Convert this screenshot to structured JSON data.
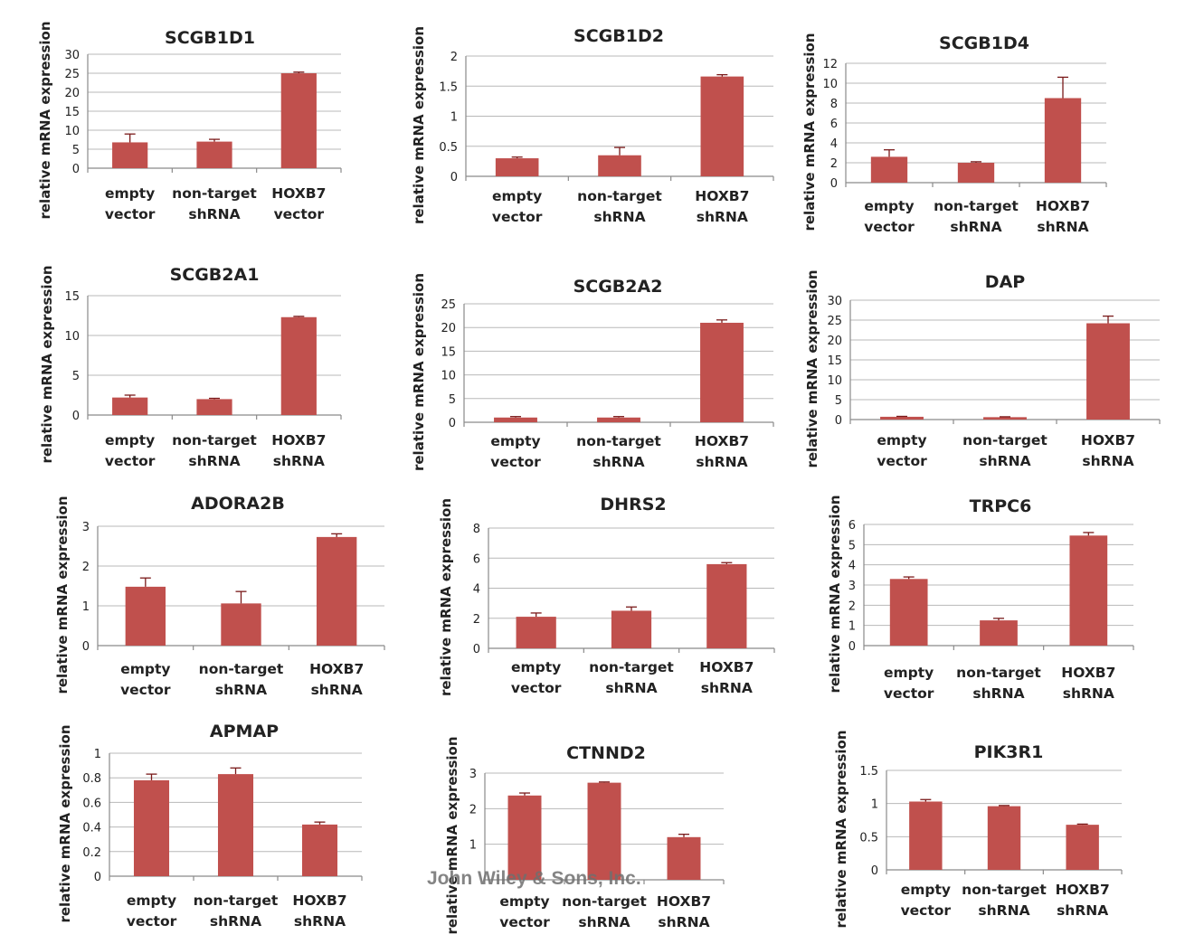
{
  "figure": {
    "watermark": "John Wiley & Sons, Inc.",
    "bar_color": "#c0504d",
    "error_color": "#7a1a1a"
  },
  "chart_data": [
    {
      "type": "bar",
      "title": "SCGB1D1",
      "ylabel": "relative mRNA expression",
      "ylim": [
        0,
        30
      ],
      "yticks": [
        "0",
        "5",
        "10",
        "15",
        "20",
        "25",
        "30"
      ],
      "categories": [
        [
          "empty",
          "vector"
        ],
        [
          "non-target",
          "shRNA"
        ],
        [
          "HOXB7",
          "vector"
        ]
      ],
      "values": [
        6.8,
        7.0,
        25.0
      ],
      "errors": [
        2.2,
        0.6,
        0.3
      ]
    },
    {
      "type": "bar",
      "title": "SCGB1D2",
      "ylabel": "relative mRNA expression",
      "ylim": [
        0,
        2
      ],
      "yticks": [
        "0",
        "0.5",
        "1",
        "1.5",
        "2"
      ],
      "categories": [
        [
          "empty",
          "vector"
        ],
        [
          "non-target",
          "shRNA"
        ],
        [
          "HOXB7",
          "shRNA"
        ]
      ],
      "values": [
        0.3,
        0.35,
        1.66
      ],
      "errors": [
        0.02,
        0.13,
        0.03
      ]
    },
    {
      "type": "bar",
      "title": "SCGB1D4",
      "ylabel": "relative mRNA expression",
      "ylim": [
        0,
        12
      ],
      "yticks": [
        "0",
        "2",
        "4",
        "6",
        "8",
        "10",
        "12"
      ],
      "categories": [
        [
          "empty",
          "vector"
        ],
        [
          "non-target",
          "shRNA"
        ],
        [
          "HOXB7",
          "shRNA"
        ]
      ],
      "values": [
        2.6,
        2.0,
        8.5
      ],
      "errors": [
        0.7,
        0.1,
        2.1
      ]
    },
    {
      "type": "bar",
      "title": "SCGB2A1",
      "ylabel": "relative mRNA expression",
      "ylim": [
        0,
        15
      ],
      "yticks": [
        "0",
        "5",
        "10",
        "15"
      ],
      "categories": [
        [
          "empty",
          "vector"
        ],
        [
          "non-target",
          "shRNA"
        ],
        [
          "HOXB7",
          "shRNA"
        ]
      ],
      "values": [
        2.2,
        2.0,
        12.3
      ],
      "errors": [
        0.3,
        0.1,
        0.1
      ]
    },
    {
      "type": "bar",
      "title": "SCGB2A2",
      "ylabel": "relative mRNA expression",
      "ylim": [
        0,
        25
      ],
      "yticks": [
        "0",
        "5",
        "10",
        "15",
        "20",
        "25"
      ],
      "categories": [
        [
          "empty",
          "vector"
        ],
        [
          "non-target",
          "shRNA"
        ],
        [
          "HOXB7",
          "shRNA"
        ]
      ],
      "values": [
        1.0,
        1.0,
        21.0
      ],
      "errors": [
        0.2,
        0.2,
        0.6
      ]
    },
    {
      "type": "bar",
      "title": "DAP",
      "ylabel": "relative mRNA expression",
      "ylim": [
        0,
        30
      ],
      "yticks": [
        "0",
        "5",
        "10",
        "15",
        "20",
        "25",
        "30"
      ],
      "categories": [
        [
          "empty",
          "vector"
        ],
        [
          "non-target",
          "shRNA"
        ],
        [
          "HOXB7",
          "shRNA"
        ]
      ],
      "values": [
        0.7,
        0.6,
        24.2
      ],
      "errors": [
        0.1,
        0.1,
        1.8
      ]
    },
    {
      "type": "bar",
      "title": "ADORA2B",
      "ylabel": "relative mRNA expression",
      "ylim": [
        0,
        3
      ],
      "yticks": [
        "0",
        "1",
        "2",
        "3"
      ],
      "categories": [
        [
          "empty",
          "vector"
        ],
        [
          "non-target",
          "shRNA"
        ],
        [
          "HOXB7",
          "shRNA"
        ]
      ],
      "values": [
        1.48,
        1.06,
        2.73
      ],
      "errors": [
        0.22,
        0.3,
        0.08
      ]
    },
    {
      "type": "bar",
      "title": "DHRS2",
      "ylabel": "relative mRNA expression",
      "ylim": [
        0,
        8
      ],
      "yticks": [
        "0",
        "2",
        "4",
        "6",
        "8"
      ],
      "categories": [
        [
          "empty",
          "vector"
        ],
        [
          "non-target",
          "shRNA"
        ],
        [
          "HOXB7",
          "shRNA"
        ]
      ],
      "values": [
        2.1,
        2.5,
        5.6
      ],
      "errors": [
        0.25,
        0.25,
        0.1
      ]
    },
    {
      "type": "bar",
      "title": "TRPC6",
      "ylabel": "relative mRNA expression",
      "ylim": [
        0,
        6
      ],
      "yticks": [
        "0",
        "1",
        "2",
        "3",
        "4",
        "5",
        "6"
      ],
      "categories": [
        [
          "empty",
          "vector"
        ],
        [
          "non-target",
          "shRNA"
        ],
        [
          "HOXB7",
          "shRNA"
        ]
      ],
      "values": [
        3.3,
        1.25,
        5.45
      ],
      "errors": [
        0.1,
        0.1,
        0.15
      ]
    },
    {
      "type": "bar",
      "title": "APMAP",
      "ylabel": "relative mRNA expression",
      "ylim": [
        0,
        1
      ],
      "yticks": [
        "0",
        "0.2",
        "0.4",
        "0.6",
        "0.8",
        "1"
      ],
      "categories": [
        [
          "empty",
          "vector"
        ],
        [
          "non-target",
          "shRNA"
        ],
        [
          "HOXB7",
          "shRNA"
        ]
      ],
      "values": [
        0.78,
        0.83,
        0.42
      ],
      "errors": [
        0.05,
        0.05,
        0.02
      ]
    },
    {
      "type": "bar",
      "title": "CTNND2",
      "ylabel": "relative mRNA expression",
      "ylim": [
        0,
        3
      ],
      "yticks": [
        "1",
        "2",
        "3"
      ],
      "categories": [
        [
          "empty",
          "vector"
        ],
        [
          "non-target",
          "shRNA"
        ],
        [
          "HOXB7",
          "shRNA"
        ]
      ],
      "values": [
        2.37,
        2.73,
        1.2
      ],
      "errors": [
        0.07,
        0.02,
        0.08
      ]
    },
    {
      "type": "bar",
      "title": "PIK3R1",
      "ylabel": "relative mRNA expression",
      "ylim": [
        0,
        1.5
      ],
      "yticks": [
        "0",
        "0.5",
        "1",
        "1.5"
      ],
      "categories": [
        [
          "empty",
          "vector"
        ],
        [
          "non-target",
          "shRNA"
        ],
        [
          "HOXB7",
          "shRNA"
        ]
      ],
      "values": [
        1.03,
        0.96,
        0.68
      ],
      "errors": [
        0.03,
        0.01,
        0.01
      ]
    }
  ]
}
